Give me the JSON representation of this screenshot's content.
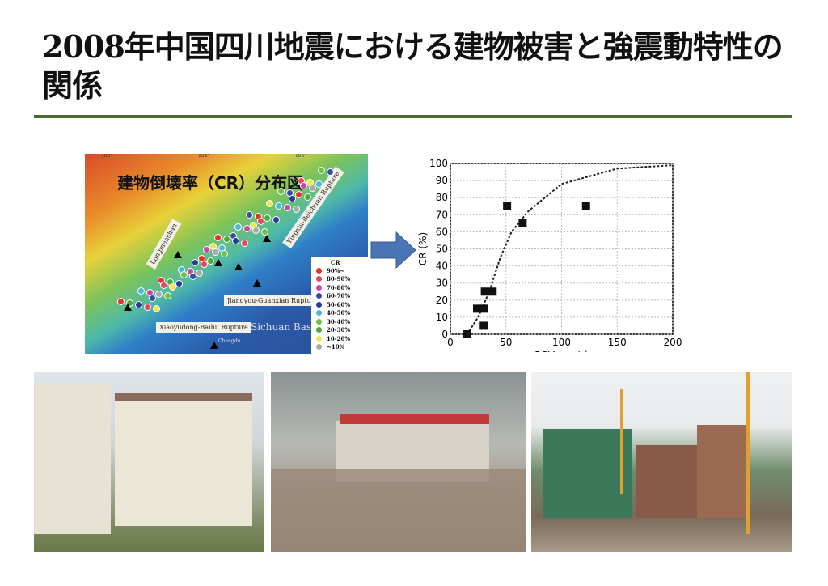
{
  "slide": {
    "title": "2008年中国四川地震における建物被害と強震動特性の関係"
  },
  "map": {
    "title": "建物倒壊率（CR）分布図",
    "longitudes": [
      "103°",
      "104°",
      "105°"
    ],
    "labels": {
      "longmenshan": "Longmenshan",
      "yingxiu": "Yingxiu-Beichuan Rupture",
      "jiangyou": "Jiangyou-Guanxian Rupture",
      "xiaoyudong": "Xiaoyudong-Baihu Rupture",
      "basin": "Sichuan Basin",
      "chengdu": "Chengdu"
    },
    "legend": {
      "title": "CR",
      "items": [
        {
          "label": "90%~",
          "color": "#e8332a"
        },
        {
          "label": "80-90%",
          "color": "#e84560"
        },
        {
          "label": "70-80%",
          "color": "#cc44aa"
        },
        {
          "label": "60-70%",
          "color": "#3a4aa8"
        },
        {
          "label": "50-60%",
          "color": "#2a3a98"
        },
        {
          "label": "40-50%",
          "color": "#4ab8d8"
        },
        {
          "label": "30-40%",
          "color": "#6cc24a"
        },
        {
          "label": "20-30%",
          "color": "#4caa3a"
        },
        {
          "label": "10-20%",
          "color": "#f0e84a"
        },
        {
          "label": "~10%",
          "color": "#aaaaaa"
        }
      ]
    }
  },
  "chart_data": {
    "type": "scatter",
    "xlabel": "PGV (cm/s)",
    "ylabel": "CR (%)",
    "xlim": [
      0,
      200
    ],
    "ylim": [
      0,
      100
    ],
    "xticks": [
      0,
      50,
      100,
      150,
      200
    ],
    "yticks": [
      0,
      10,
      20,
      30,
      40,
      50,
      60,
      70,
      80,
      90,
      100
    ],
    "grid": true,
    "points": [
      {
        "x": 15,
        "y": 0
      },
      {
        "x": 24,
        "y": 15
      },
      {
        "x": 30,
        "y": 15
      },
      {
        "x": 30,
        "y": 5
      },
      {
        "x": 31,
        "y": 25
      },
      {
        "x": 38,
        "y": 25
      },
      {
        "x": 51,
        "y": 75
      },
      {
        "x": 65,
        "y": 65
      },
      {
        "x": 122,
        "y": 75
      }
    ],
    "fit_curve": {
      "style": "dashed",
      "description_points": [
        [
          15,
          0
        ],
        [
          25,
          10
        ],
        [
          35,
          25
        ],
        [
          45,
          45
        ],
        [
          55,
          60
        ],
        [
          70,
          72
        ],
        [
          100,
          88
        ],
        [
          150,
          97
        ],
        [
          200,
          99
        ]
      ]
    }
  },
  "photos": [
    {
      "name": "damaged-apartments"
    },
    {
      "name": "collapsed-building-rubble"
    },
    {
      "name": "buildings-under-construction"
    }
  ]
}
